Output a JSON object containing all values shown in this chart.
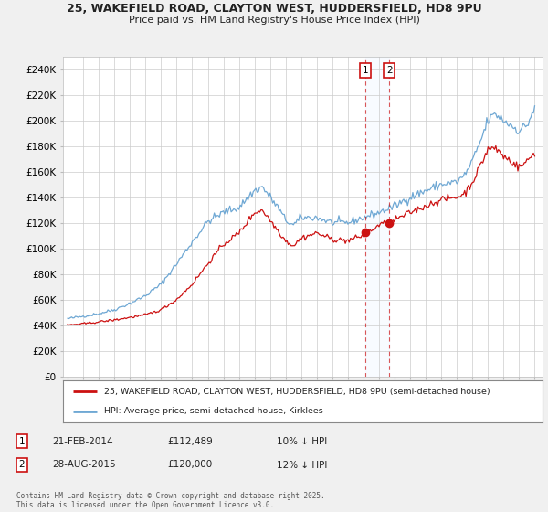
{
  "title_line1": "25, WAKEFIELD ROAD, CLAYTON WEST, HUDDERSFIELD, HD8 9PU",
  "title_line2": "Price paid vs. HM Land Registry's House Price Index (HPI)",
  "ylabel_ticks": [
    "£0",
    "£20K",
    "£40K",
    "£60K",
    "£80K",
    "£100K",
    "£120K",
    "£140K",
    "£160K",
    "£180K",
    "£200K",
    "£220K",
    "£240K"
  ],
  "ytick_values": [
    0,
    20000,
    40000,
    60000,
    80000,
    100000,
    120000,
    140000,
    160000,
    180000,
    200000,
    220000,
    240000
  ],
  "ylim": [
    0,
    250000
  ],
  "background_color": "#f0f0f0",
  "plot_bg_color": "#ffffff",
  "hpi_color": "#6fa8d4",
  "price_color": "#cc1111",
  "vline_color": "#cc1111",
  "shade_color": "#ddeeff",
  "legend_label_red": "25, WAKEFIELD ROAD, CLAYTON WEST, HUDDERSFIELD, HD8 9PU (semi-detached house)",
  "legend_label_blue": "HPI: Average price, semi-detached house, Kirklees",
  "annotation1": {
    "num": "1",
    "date": "21-FEB-2014",
    "price": "£112,489",
    "note": "10% ↓ HPI"
  },
  "annotation2": {
    "num": "2",
    "date": "28-AUG-2015",
    "price": "£120,000",
    "note": "12% ↓ HPI"
  },
  "copyright": "Contains HM Land Registry data © Crown copyright and database right 2025.\nThis data is licensed under the Open Government Licence v3.0.",
  "sale1_year": 2014.13,
  "sale1_price": 112489,
  "sale2_year": 2015.65,
  "sale2_price": 120000
}
